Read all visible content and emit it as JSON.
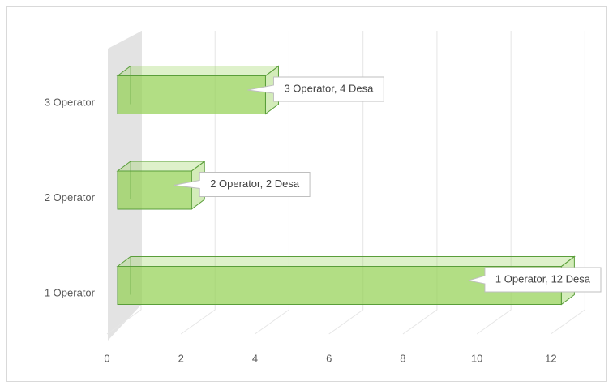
{
  "chart_data": {
    "type": "bar3d",
    "orientation": "horizontal",
    "categories": [
      "1 Operator",
      "2 Operator",
      "3 Operator"
    ],
    "values": [
      12,
      2,
      4
    ],
    "value_labels": [
      "1 Operator, 12 Desa",
      "2 Operator, 2 Desa",
      "3 Operator, 4 Desa"
    ],
    "color": "#92d050",
    "xlim": [
      0,
      13
    ],
    "xticks": [
      0,
      2,
      4,
      6,
      8,
      10,
      12
    ],
    "grid": true
  }
}
